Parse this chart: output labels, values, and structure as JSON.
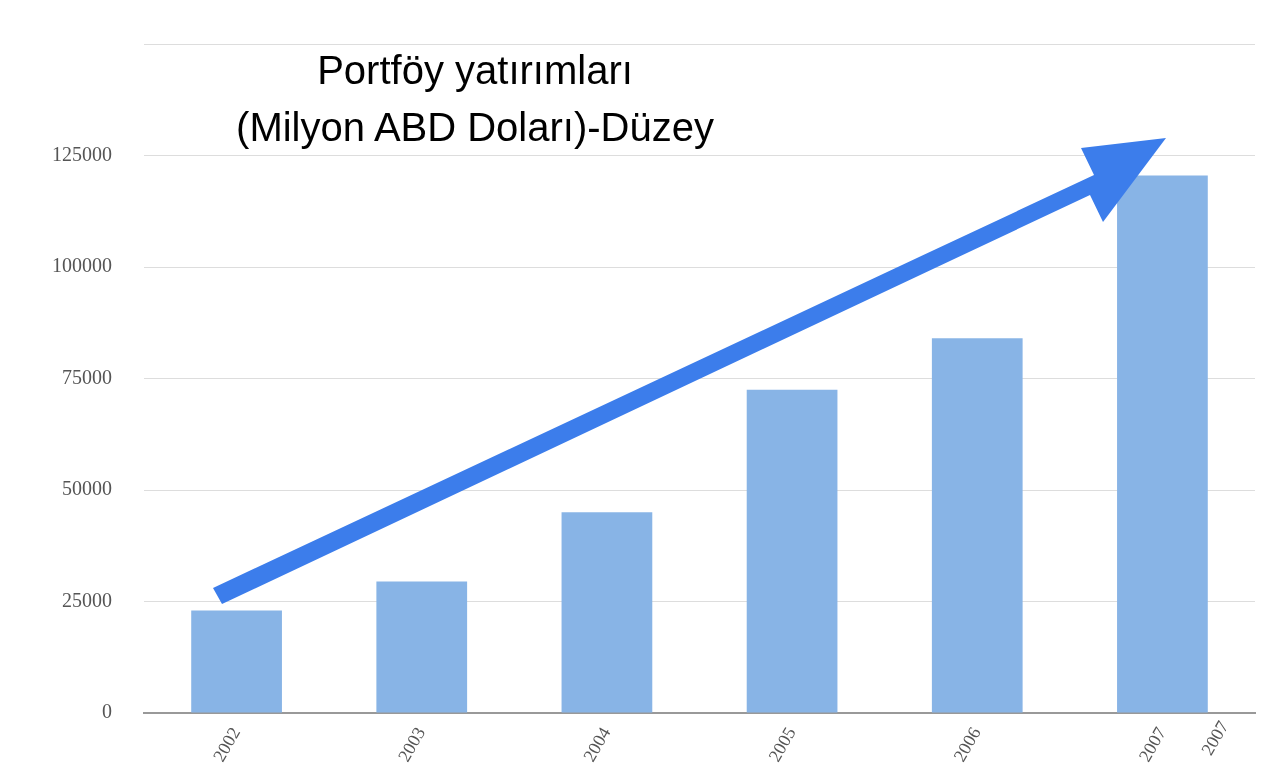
{
  "chart_data": {
    "type": "bar",
    "title": "Portföy yatırımları\n(Milyon ABD Doları)-Düzey",
    "categories": [
      "2002",
      "2003",
      "2004",
      "2005",
      "2006",
      "2007"
    ],
    "values": [
      23000,
      29500,
      45000,
      72500,
      84000,
      120500
    ],
    "color": "#88b4e6",
    "ylim": [
      0,
      150000
    ],
    "yticks": [
      0,
      25000,
      50000,
      75000,
      100000,
      125000,
      {
        "value": 150000,
        "label": null
      }
    ],
    "grid": "y",
    "legend": false,
    "annotations": [
      "2007"
    ]
  }
}
